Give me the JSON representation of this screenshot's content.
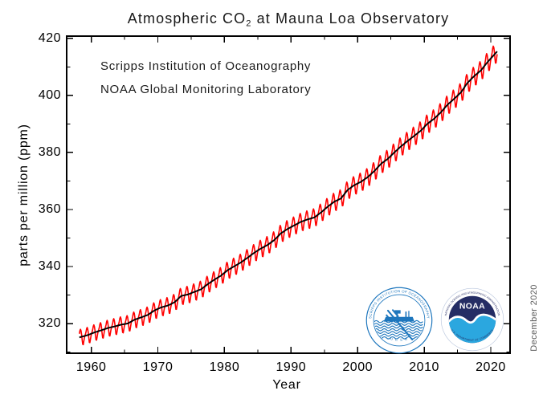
{
  "figure": {
    "title_prefix": "Atmospheric CO",
    "title_sub": "2",
    "title_suffix": " at Mauna Loa Observatory",
    "annotation_line1": "Scripps Institution of Oceanography",
    "annotation_line2": "NOAA Global Monitoring Laboratory",
    "ylabel": "parts per million (ppm)",
    "xlabel": "Year",
    "date_note": "December 2020"
  },
  "logos": {
    "scripps": {
      "arc_text": "SCRIPPS INSTITUTION OF OCEANOGRAPHY",
      "bottom_text": "U C S D",
      "blue": "#1d76bd"
    },
    "noaa": {
      "name_text": "NOAA",
      "arc_text_top": "NATIONAL OCEANIC AND ATMOSPHERIC ADMINISTRATION",
      "arc_text_bottom": "U.S. DEPARTMENT OF COMMERCE",
      "navy": "#252d64",
      "cyan": "#2ba7df"
    }
  },
  "chart_data": {
    "type": "line",
    "title": "Atmospheric CO2 at Mauna Loa Observatory",
    "xlabel": "Year",
    "ylabel": "parts per million (ppm)",
    "xlim": [
      1956.3,
      2022.9
    ],
    "ylim": [
      309.6,
      420.8
    ],
    "x_ticks": [
      1960,
      1970,
      1980,
      1990,
      2000,
      2010,
      2020
    ],
    "x_minor_step": 5,
    "y_ticks": [
      320,
      340,
      360,
      380,
      400,
      420
    ],
    "y_minor_step": 10,
    "grid": false,
    "legend": "none",
    "series": [
      {
        "name": "Monthly mean CO2 (with seasonal cycle)",
        "color": "#ff0000",
        "style": "monthly"
      },
      {
        "name": "Seasonally adjusted trend",
        "color": "#000000",
        "style": "trend"
      }
    ],
    "data_start_year": 1958.2,
    "data_end_year": 2021.0,
    "annual_mean_start_year": 1958,
    "annual_means_ppm": [
      315.34,
      315.98,
      316.91,
      317.64,
      318.45,
      318.99,
      319.62,
      320.04,
      321.37,
      322.18,
      323.05,
      324.62,
      325.68,
      326.32,
      327.46,
      329.68,
      330.19,
      331.12,
      332.03,
      333.84,
      335.41,
      336.84,
      338.76,
      340.12,
      341.48,
      343.15,
      344.87,
      346.35,
      347.61,
      349.31,
      351.69,
      353.2,
      354.45,
      355.7,
      356.54,
      357.21,
      358.96,
      360.97,
      362.74,
      363.88,
      366.84,
      368.54,
      369.71,
      371.32,
      373.45,
      375.98,
      377.7,
      379.98,
      382.09,
      384.02,
      385.83,
      387.64,
      390.1,
      391.85,
      394.06,
      396.74,
      398.81,
      401.01,
      404.41,
      406.76,
      408.72,
      411.66,
      414.24
    ],
    "seasonal_cycle_ppm": [
      0.0,
      0.66,
      1.41,
      2.55,
      3.02,
      2.36,
      0.83,
      -1.27,
      -3.06,
      -3.24,
      -2.05,
      -0.86
    ],
    "seasonal_amplitude_scale": [
      0.9,
      1.12
    ]
  }
}
